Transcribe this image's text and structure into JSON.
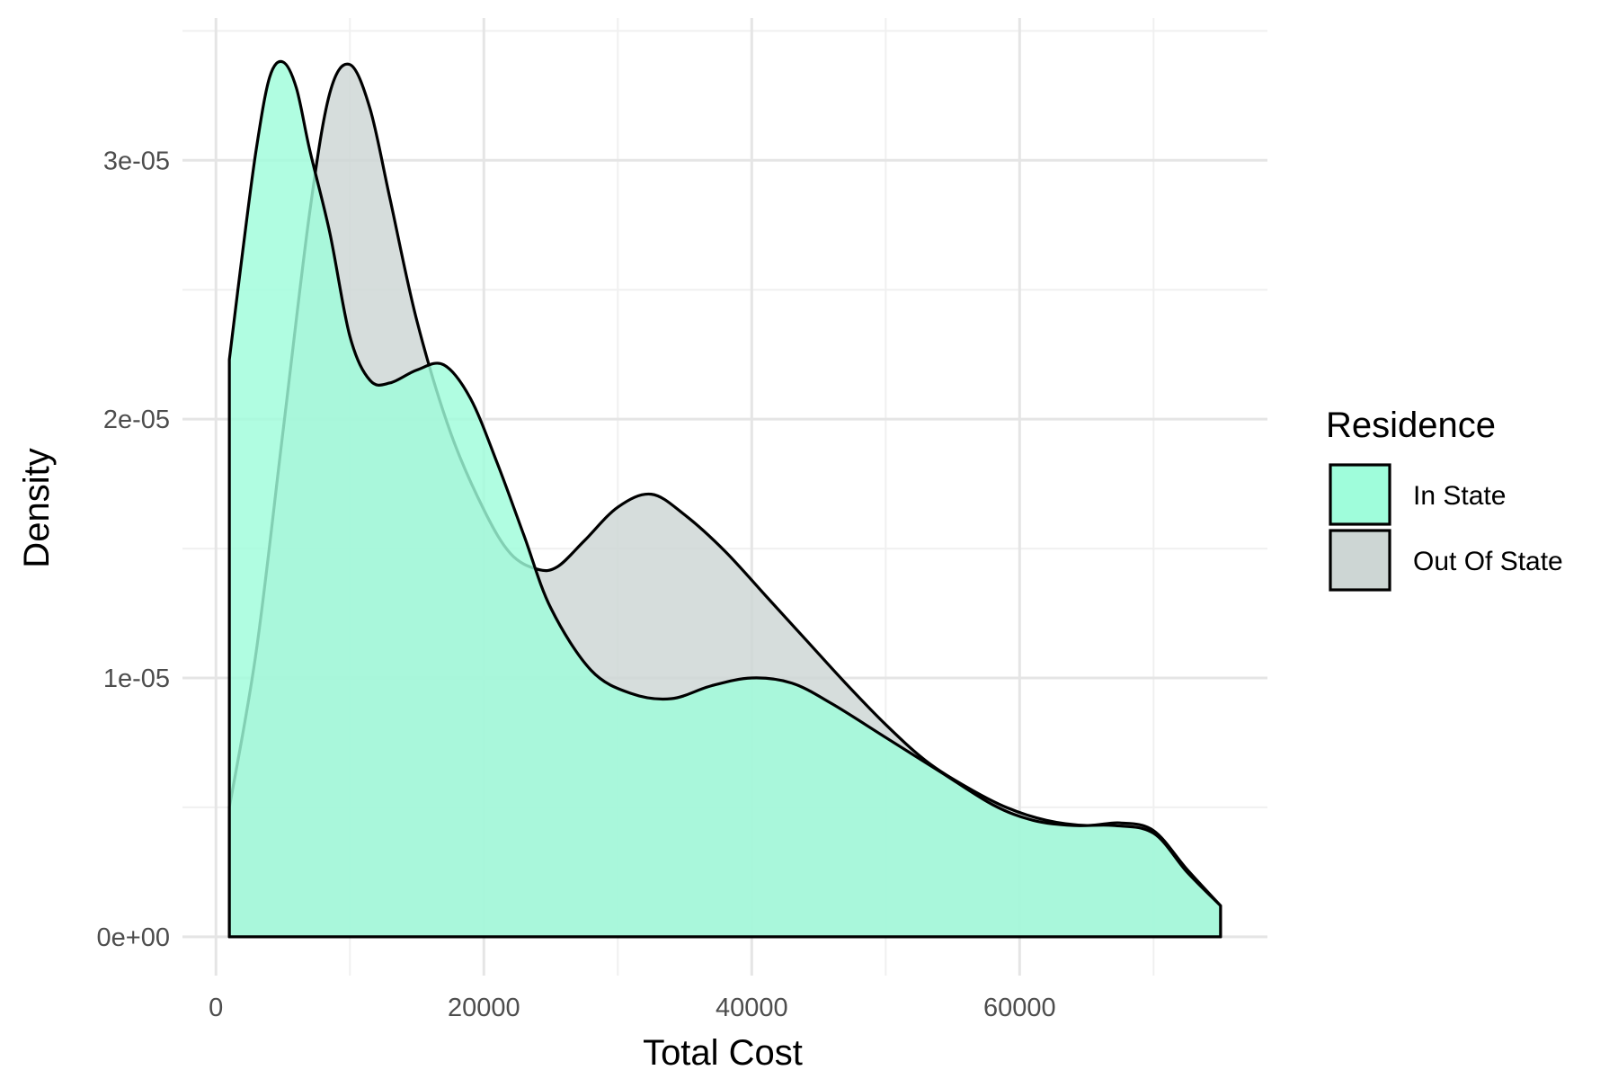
{
  "chart_data": {
    "type": "area",
    "title": "",
    "xlabel": "Total Cost",
    "ylabel": "Density",
    "xlim": [
      -2500,
      78500
    ],
    "ylim": [
      -1.5e-06,
      3.55e-05
    ],
    "x_ticks": [
      0,
      20000,
      40000,
      60000
    ],
    "x_tick_labels": [
      "0",
      "20000",
      "40000",
      "60000"
    ],
    "y_ticks": [
      0,
      1e-05,
      2e-05,
      3e-05
    ],
    "y_tick_labels": [
      "0e+00",
      "1e-05",
      "2e-05",
      "3e-05"
    ],
    "grid": true,
    "legend": {
      "title": "Residence",
      "position": "right"
    },
    "series": [
      {
        "name": "Out Of State",
        "color": "#cdd6d4",
        "points": [
          [
            1000,
            5e-06
          ],
          [
            3000,
            1.1e-05
          ],
          [
            5000,
            1.95e-05
          ],
          [
            7000,
            2.8e-05
          ],
          [
            8500,
            3.26e-05
          ],
          [
            10000,
            3.37e-05
          ],
          [
            11500,
            3.2e-05
          ],
          [
            13000,
            2.85e-05
          ],
          [
            15000,
            2.38e-05
          ],
          [
            17500,
            1.95e-05
          ],
          [
            20000,
            1.65e-05
          ],
          [
            22000,
            1.48e-05
          ],
          [
            24000,
            1.42e-05
          ],
          [
            25500,
            1.43e-05
          ],
          [
            27500,
            1.53e-05
          ],
          [
            30000,
            1.66e-05
          ],
          [
            32500,
            1.71e-05
          ],
          [
            35000,
            1.63e-05
          ],
          [
            38000,
            1.49e-05
          ],
          [
            41000,
            1.32e-05
          ],
          [
            44000,
            1.15e-05
          ],
          [
            47000,
            9.8e-06
          ],
          [
            50000,
            8.2e-06
          ],
          [
            53000,
            6.8e-06
          ],
          [
            56000,
            5.8e-06
          ],
          [
            59000,
            5e-06
          ],
          [
            62000,
            4.5e-06
          ],
          [
            65000,
            4.3e-06
          ],
          [
            67500,
            4.4e-06
          ],
          [
            70000,
            4.1e-06
          ],
          [
            72500,
            2.6e-06
          ],
          [
            75000,
            1.2e-06
          ]
        ]
      },
      {
        "name": "In State",
        "color": "#9ffddb",
        "points": [
          [
            1000,
            2.23e-05
          ],
          [
            2000,
            2.65e-05
          ],
          [
            3000,
            3.04e-05
          ],
          [
            4000,
            3.32e-05
          ],
          [
            5000,
            3.38e-05
          ],
          [
            6000,
            3.28e-05
          ],
          [
            7000,
            3.04e-05
          ],
          [
            8500,
            2.72e-05
          ],
          [
            10000,
            2.32e-05
          ],
          [
            11500,
            2.15e-05
          ],
          [
            13000,
            2.14e-05
          ],
          [
            15000,
            2.19e-05
          ],
          [
            17000,
            2.21e-05
          ],
          [
            19000,
            2.08e-05
          ],
          [
            21000,
            1.83e-05
          ],
          [
            23000,
            1.55e-05
          ],
          [
            25000,
            1.27e-05
          ],
          [
            28000,
            1.03e-05
          ],
          [
            31000,
            9.4e-06
          ],
          [
            34000,
            9.2e-06
          ],
          [
            37000,
            9.7e-06
          ],
          [
            40000,
            1e-05
          ],
          [
            43000,
            9.8e-06
          ],
          [
            46000,
            9e-06
          ],
          [
            50000,
            7.7e-06
          ],
          [
            54000,
            6.4e-06
          ],
          [
            58000,
            5.1e-06
          ],
          [
            61000,
            4.5e-06
          ],
          [
            64000,
            4.3e-06
          ],
          [
            67000,
            4.3e-06
          ],
          [
            70000,
            4e-06
          ],
          [
            72500,
            2.5e-06
          ],
          [
            75000,
            1.2e-06
          ]
        ]
      }
    ]
  }
}
